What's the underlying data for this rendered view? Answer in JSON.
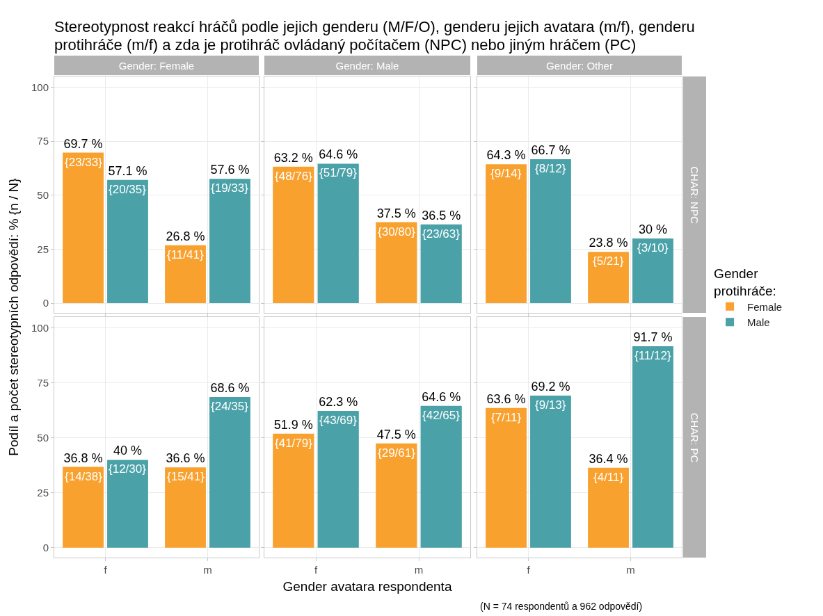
{
  "chart_data": [
    {
      "type": "bar",
      "title": "Stereotypnost reakcí hráčů podle jejich genderu (M/F/O), genderu jejich avatara (m/f), genderu protihráče (m/f) a zda je protihráč ovládaný počítačem (NPC) nebo jiným hráčem (PC)",
      "subtitle": "Gender: Female",
      "ylabel": "Podíl a počet stereotypních odpovědí: % {n / N}",
      "categories": [
        "f",
        "m"
      ],
      "ylim": [
        -4.5,
        105
      ],
      "yticks": [
        0,
        25,
        50,
        75,
        100
      ],
      "grid": true,
      "tick_labels": "y",
      "series": [
        {
          "color": "#f9a12f",
          "values": [
            69.7,
            26.8
          ],
          "value_labels": [
            "69.7 %",
            "26.8 %"
          ]
        },
        {
          "color": "#4aa1a8",
          "values": [
            57.1,
            57.6
          ],
          "value_labels": [
            "57.1 %",
            "57.6 %"
          ]
        }
      ],
      "annotations": [
        {
          "text": "{23/33}",
          "x": "f",
          "y": 69.7
        },
        {
          "text": "{20/35}",
          "x": "f",
          "y": 57.1
        },
        {
          "text": "{11/41}",
          "x": "m",
          "y": 26.8
        },
        {
          "text": "{19/33}",
          "x": "m",
          "y": 57.6
        }
      ]
    },
    {
      "type": "bar",
      "subtitle": "Gender: Male",
      "categories": [
        "f",
        "m"
      ],
      "ylim": [
        -4.5,
        105
      ],
      "yticks": [
        0,
        25,
        50,
        75,
        100
      ],
      "grid": true,
      "tick_labels": false,
      "series": [
        {
          "color": "#f9a12f",
          "values": [
            63.2,
            37.5
          ],
          "value_labels": [
            "63.2 %",
            "37.5 %"
          ]
        },
        {
          "color": "#4aa1a8",
          "values": [
            64.6,
            36.5
          ],
          "value_labels": [
            "64.6 %",
            "36.5 %"
          ]
        }
      ],
      "annotations": [
        {
          "text": "{48/76}",
          "x": "f",
          "y": 63.2
        },
        {
          "text": "{51/79}",
          "x": "f",
          "y": 64.6
        },
        {
          "text": "{30/80}",
          "x": "m",
          "y": 37.5
        },
        {
          "text": "{23/63}",
          "x": "m",
          "y": 36.5
        }
      ]
    },
    {
      "type": "bar",
      "subtitle": "Gender: Other",
      "y2label": "CHAR: NPC",
      "legend_title": "Gender protihráče:",
      "legend": "right",
      "categories": [
        "f",
        "m"
      ],
      "ylim": [
        -4.5,
        105
      ],
      "yticks": [
        0,
        25,
        50,
        75,
        100
      ],
      "grid": true,
      "tick_labels": false,
      "series": [
        {
          "name": "Female",
          "color": "#f9a12f",
          "values": [
            64.3,
            23.8
          ],
          "value_labels": [
            "64.3 %",
            "23.8 %"
          ]
        },
        {
          "name": "Male",
          "color": "#4aa1a8",
          "values": [
            66.7,
            30
          ],
          "value_labels": [
            "66.7 %",
            "30 %"
          ]
        }
      ],
      "annotations": [
        {
          "text": "{9/14}",
          "x": "f",
          "y": 64.3
        },
        {
          "text": "{8/12}",
          "x": "f",
          "y": 66.7
        },
        {
          "text": "{5/21}",
          "x": "m",
          "y": 23.8
        },
        {
          "text": "{3/10}",
          "x": "m",
          "y": 30
        }
      ]
    },
    {
      "type": "bar",
      "categories": [
        "f",
        "m"
      ],
      "ylim": [
        -4.5,
        105
      ],
      "yticks": [
        0,
        25,
        50,
        75,
        100
      ],
      "grid": true,
      "series": [
        {
          "color": "#f9a12f",
          "values": [
            36.8,
            36.6
          ],
          "value_labels": [
            "36.8 %",
            "36.6 %"
          ]
        },
        {
          "color": "#4aa1a8",
          "values": [
            40,
            68.6
          ],
          "value_labels": [
            "40 %",
            "68.6 %"
          ]
        }
      ],
      "annotations": [
        {
          "text": "{14/38}",
          "x": "f",
          "y": 36.8
        },
        {
          "text": "{12/30}",
          "x": "f",
          "y": 40
        },
        {
          "text": "{15/41}",
          "x": "m",
          "y": 36.6
        },
        {
          "text": "{24/35}",
          "x": "m",
          "y": 68.6
        }
      ]
    },
    {
      "type": "bar",
      "xlabel": "Gender avatara respondenta",
      "categories": [
        "f",
        "m"
      ],
      "ylim": [
        -4.5,
        105
      ],
      "yticks": [
        0,
        25,
        50,
        75,
        100
      ],
      "grid": true,
      "tick_labels": "x",
      "series": [
        {
          "color": "#f9a12f",
          "values": [
            51.9,
            47.5
          ],
          "value_labels": [
            "51.9 %",
            "47.5 %"
          ]
        },
        {
          "color": "#4aa1a8",
          "values": [
            62.3,
            64.6
          ],
          "value_labels": [
            "62.3 %",
            "64.6 %"
          ]
        }
      ],
      "annotations": [
        {
          "text": "{41/79}",
          "x": "f",
          "y": 51.9
        },
        {
          "text": "{43/69}",
          "x": "f",
          "y": 62.3
        },
        {
          "text": "{29/61}",
          "x": "m",
          "y": 47.5
        },
        {
          "text": "{42/65}",
          "x": "m",
          "y": 64.6
        }
      ]
    },
    {
      "type": "bar",
      "y2label": "CHAR: PC",
      "categories": [
        "f",
        "m"
      ],
      "ylim": [
        -4.5,
        105
      ],
      "yticks": [
        0,
        25,
        50,
        75,
        100
      ],
      "grid": true,
      "tick_labels": "x",
      "series": [
        {
          "color": "#f9a12f",
          "values": [
            63.6,
            36.4
          ],
          "value_labels": [
            "63.6 %",
            "36.4 %"
          ]
        },
        {
          "color": "#4aa1a8",
          "values": [
            69.2,
            91.7
          ],
          "value_labels": [
            "69.2 %",
            "91.7 %"
          ]
        }
      ],
      "annotations": [
        {
          "text": "{7/11}",
          "x": "f",
          "y": 63.6
        },
        {
          "text": "{9/13}",
          "x": "f",
          "y": 69.2
        },
        {
          "text": "{4/11}",
          "x": "m",
          "y": 36.4
        },
        {
          "text": "{11/12}",
          "x": "m",
          "y": 91.7
        },
        "(N = 74 respondentů a 962 odpovědí)"
      ]
    }
  ]
}
